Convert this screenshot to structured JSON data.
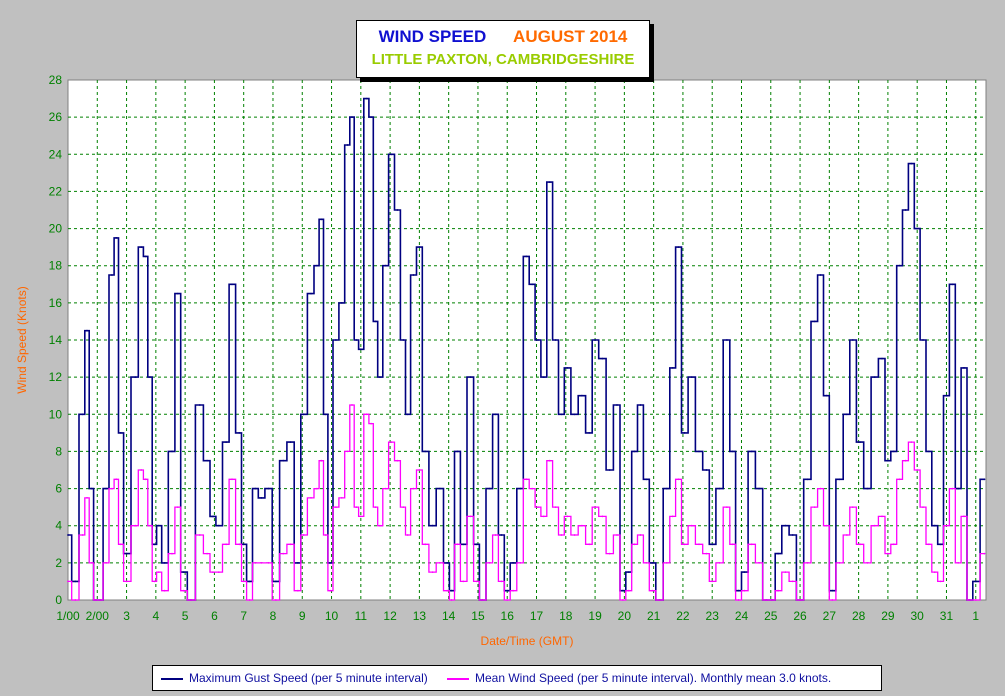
{
  "title": {
    "main": "WIND SPEED",
    "period": "AUGUST 2014",
    "location": "LITTLE PAXTON, CAMBRIDGESHIRE"
  },
  "colors": {
    "background": "#c0c0c0",
    "plot_background": "#ffffff",
    "gust": "#000080",
    "mean": "#ff00ff",
    "tick_labels": "#008000",
    "axis_titles": "#ff6600",
    "title_main": "#1010d0",
    "title_period": "#ff6a00",
    "title_location": "#99cc00"
  },
  "legend": {
    "gust_label": "Maximum Gust Speed (per 5 minute interval)",
    "mean_label": "Mean Wind Speed (per 5 minute interval). Monthly mean 3.0 knots."
  },
  "chart_data": {
    "type": "line",
    "title": "WIND SPEED AUGUST 2014",
    "subtitle": "LITTLE PAXTON, CAMBRIDGESHIRE",
    "xlabel": "Date/Time (GMT)",
    "ylabel": "Wind Speed (Knots)",
    "ylim": [
      0,
      28
    ],
    "yticks": [
      0,
      2,
      4,
      6,
      8,
      10,
      12,
      14,
      16,
      18,
      20,
      22,
      24,
      26,
      28
    ],
    "x_tick_labels": [
      "1/00",
      "2/00",
      "3",
      "4",
      "5",
      "6",
      "7",
      "8",
      "9",
      "10",
      "11",
      "12",
      "13",
      "14",
      "15",
      "16",
      "17",
      "18",
      "19",
      "20",
      "21",
      "22",
      "23",
      "24",
      "25",
      "26",
      "27",
      "28",
      "29",
      "30",
      "31",
      "1"
    ],
    "grid": true,
    "legend_position": "bottom",
    "monthly_mean": 3.0,
    "x_unit": "day of month (decimal, GMT)",
    "series": [
      {
        "name": "Maximum Gust Speed (per 5 minute interval)",
        "color": "#000080",
        "x": [
          1.0,
          1.25,
          1.5,
          1.65,
          1.8,
          1.95,
          2.1,
          2.3,
          2.5,
          2.65,
          2.8,
          3.0,
          3.3,
          3.5,
          3.65,
          3.8,
          3.95,
          4.1,
          4.3,
          4.55,
          4.75,
          4.95,
          5.2,
          5.5,
          5.75,
          5.95,
          6.15,
          6.4,
          6.6,
          6.85,
          7.0,
          7.2,
          7.4,
          7.6,
          7.85,
          8.1,
          8.35,
          8.6,
          8.85,
          9.05,
          9.3,
          9.5,
          9.65,
          9.8,
          9.95,
          10.15,
          10.35,
          10.55,
          10.7,
          10.85,
          11.0,
          11.2,
          11.35,
          11.5,
          11.65,
          11.85,
          12.05,
          12.25,
          12.45,
          12.6,
          12.8,
          13.0,
          13.2,
          13.45,
          13.7,
          13.95,
          14.1,
          14.3,
          14.5,
          14.75,
          14.95,
          15.15,
          15.4,
          15.6,
          15.8,
          16.0,
          16.2,
          16.45,
          16.65,
          16.85,
          17.05,
          17.25,
          17.45,
          17.65,
          17.85,
          18.05,
          18.3,
          18.55,
          18.8,
          19.0,
          19.25,
          19.5,
          19.75,
          19.95,
          20.15,
          20.35,
          20.55,
          20.75,
          20.95,
          21.2,
          21.45,
          21.65,
          21.85,
          22.05,
          22.3,
          22.55,
          22.8,
          23.0,
          23.25,
          23.5,
          23.7,
          23.9,
          24.1,
          24.35,
          24.6,
          24.85,
          25.05,
          25.25,
          25.5,
          25.75,
          26.0,
          26.25,
          26.5,
          26.7,
          26.9,
          27.1,
          27.35,
          27.6,
          27.8,
          28.05,
          28.3,
          28.55,
          28.8,
          29.0,
          29.2,
          29.4,
          29.6,
          29.8,
          30.0,
          30.2,
          30.4,
          30.6,
          30.8,
          31.0,
          31.2,
          31.4,
          31.6,
          31.8,
          32.0,
          32.3
        ],
        "values": [
          3.5,
          1.0,
          10.0,
          14.5,
          6.0,
          0.0,
          0.0,
          6.0,
          17.5,
          19.5,
          9.0,
          2.5,
          12.0,
          19.0,
          18.5,
          12.0,
          3.0,
          4.0,
          2.0,
          8.0,
          16.5,
          1.5,
          0.0,
          10.5,
          7.5,
          4.5,
          4.0,
          8.5,
          17.0,
          9.0,
          3.0,
          1.0,
          6.0,
          5.5,
          6.0,
          1.0,
          7.5,
          8.5,
          2.0,
          10.0,
          16.5,
          18.0,
          20.5,
          10.0,
          2.0,
          14.0,
          16.0,
          24.5,
          26.0,
          14.0,
          13.5,
          27.0,
          26.0,
          15.0,
          12.0,
          18.0,
          24.0,
          21.0,
          14.0,
          10.0,
          17.5,
          19.0,
          8.0,
          4.0,
          6.0,
          2.0,
          0.5,
          8.0,
          3.0,
          12.0,
          3.0,
          0.0,
          6.0,
          10.0,
          3.5,
          0.5,
          2.0,
          6.0,
          18.5,
          17.0,
          14.0,
          12.0,
          22.5,
          14.0,
          10.0,
          12.5,
          10.0,
          11.0,
          9.0,
          14.0,
          13.0,
          7.0,
          10.5,
          0.5,
          1.5,
          8.0,
          10.5,
          6.5,
          2.0,
          0.0,
          6.0,
          12.5,
          19.0,
          9.0,
          12.0,
          8.0,
          7.0,
          3.0,
          6.0,
          14.0,
          8.0,
          0.5,
          1.5,
          8.0,
          6.0,
          0.0,
          0.0,
          2.5,
          4.0,
          3.5,
          0.0,
          6.5,
          15.0,
          17.5,
          11.0,
          0.5,
          6.5,
          10.0,
          14.0,
          8.5,
          6.0,
          12.0,
          13.0,
          7.5,
          8.0,
          18.0,
          21.0,
          23.5,
          20.0,
          14.0,
          8.0,
          4.0,
          3.0,
          11.0,
          17.0,
          6.0,
          12.5,
          0.0,
          1.0,
          6.5
        ]
      },
      {
        "name": "Mean Wind Speed (per 5 minute interval). Monthly mean 3.0 knots.",
        "color": "#ff00ff",
        "x": [
          1.0,
          1.25,
          1.5,
          1.65,
          1.8,
          1.95,
          2.1,
          2.3,
          2.5,
          2.65,
          2.8,
          3.0,
          3.3,
          3.5,
          3.65,
          3.8,
          3.95,
          4.1,
          4.3,
          4.55,
          4.75,
          4.95,
          5.2,
          5.5,
          5.75,
          5.95,
          6.15,
          6.4,
          6.6,
          6.85,
          7.0,
          7.2,
          7.4,
          7.6,
          7.85,
          8.1,
          8.35,
          8.6,
          8.85,
          9.05,
          9.3,
          9.5,
          9.65,
          9.8,
          9.95,
          10.15,
          10.35,
          10.55,
          10.7,
          10.85,
          11.0,
          11.2,
          11.35,
          11.5,
          11.65,
          11.85,
          12.05,
          12.25,
          12.45,
          12.6,
          12.8,
          13.0,
          13.2,
          13.45,
          13.7,
          13.95,
          14.1,
          14.3,
          14.5,
          14.75,
          14.95,
          15.15,
          15.4,
          15.6,
          15.8,
          16.0,
          16.2,
          16.45,
          16.65,
          16.85,
          17.05,
          17.25,
          17.45,
          17.65,
          17.85,
          18.05,
          18.3,
          18.55,
          18.8,
          19.0,
          19.25,
          19.5,
          19.75,
          19.95,
          20.15,
          20.35,
          20.55,
          20.75,
          20.95,
          21.2,
          21.45,
          21.65,
          21.85,
          22.05,
          22.3,
          22.55,
          22.8,
          23.0,
          23.25,
          23.5,
          23.7,
          23.9,
          24.1,
          24.35,
          24.6,
          24.85,
          25.05,
          25.25,
          25.5,
          25.75,
          26.0,
          26.25,
          26.5,
          26.7,
          26.9,
          27.1,
          27.35,
          27.6,
          27.8,
          28.05,
          28.3,
          28.55,
          28.8,
          29.0,
          29.2,
          29.4,
          29.6,
          29.8,
          30.0,
          30.2,
          30.4,
          30.6,
          30.8,
          31.0,
          31.2,
          31.4,
          31.6,
          31.8,
          32.0,
          32.3
        ],
        "values": [
          1.0,
          0.0,
          3.5,
          5.5,
          2.0,
          0.0,
          0.0,
          2.0,
          6.0,
          6.5,
          3.0,
          1.0,
          4.0,
          7.0,
          6.5,
          4.0,
          1.0,
          1.5,
          0.5,
          2.5,
          5.0,
          0.5,
          0.0,
          3.5,
          2.5,
          1.5,
          1.5,
          3.0,
          6.5,
          3.0,
          1.0,
          0.0,
          2.0,
          2.0,
          2.0,
          0.0,
          2.5,
          3.0,
          0.5,
          3.5,
          5.5,
          6.0,
          7.5,
          3.5,
          0.5,
          5.0,
          5.5,
          8.0,
          10.5,
          5.0,
          4.5,
          10.0,
          9.5,
          5.0,
          4.0,
          6.0,
          8.5,
          7.5,
          5.0,
          3.5,
          6.0,
          7.0,
          3.0,
          1.5,
          2.0,
          0.5,
          0.0,
          3.0,
          1.0,
          4.5,
          1.0,
          0.0,
          2.0,
          3.5,
          1.0,
          0.0,
          0.5,
          2.0,
          6.5,
          6.0,
          5.0,
          4.5,
          7.5,
          5.0,
          3.5,
          4.5,
          3.5,
          4.0,
          3.0,
          5.0,
          4.5,
          2.5,
          3.5,
          0.0,
          0.5,
          3.0,
          3.5,
          2.0,
          0.5,
          0.0,
          2.0,
          4.5,
          6.5,
          3.0,
          4.0,
          3.0,
          2.5,
          1.0,
          2.0,
          5.0,
          3.0,
          0.0,
          0.5,
          3.0,
          2.0,
          0.0,
          0.0,
          0.5,
          1.5,
          1.0,
          0.0,
          2.0,
          5.0,
          6.0,
          4.0,
          0.0,
          2.0,
          3.5,
          5.0,
          3.0,
          2.0,
          4.0,
          4.5,
          2.5,
          3.0,
          6.5,
          7.5,
          8.5,
          7.0,
          5.0,
          3.0,
          1.5,
          1.0,
          4.0,
          6.0,
          2.0,
          4.5,
          0.0,
          0.0,
          2.5
        ]
      }
    ]
  }
}
